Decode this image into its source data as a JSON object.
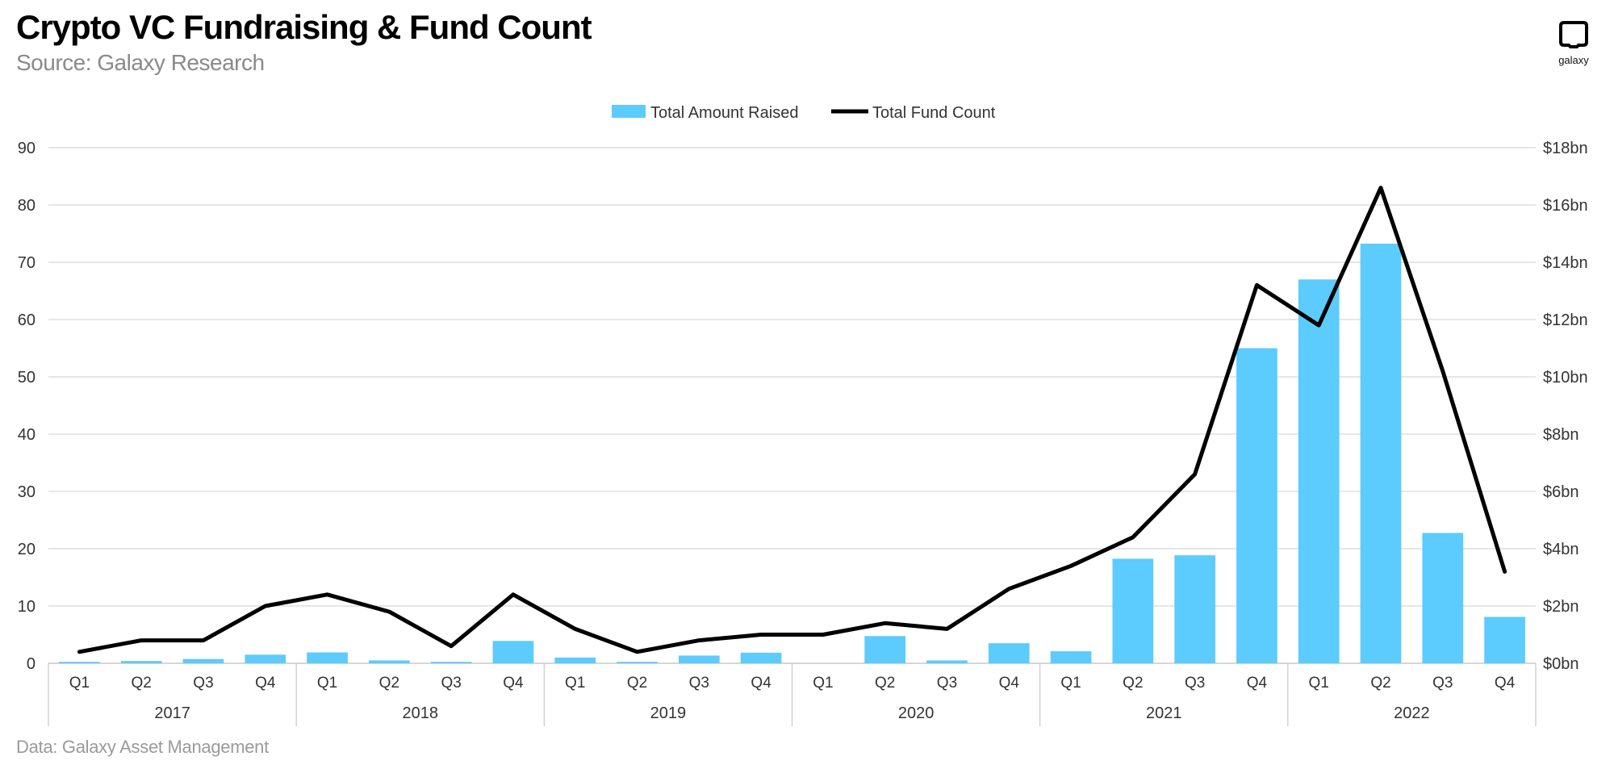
{
  "header": {
    "title": "Crypto VC Fundraising & Fund Count",
    "subtitle": "Source: Galaxy Research"
  },
  "logo": {
    "text": "galaxy",
    "icon": "galaxy-logo-icon"
  },
  "footer": {
    "note": "Data: Galaxy Asset Management"
  },
  "colors": {
    "bar": "#5ccbfd",
    "line": "#000000",
    "grid": "#d6d6d6",
    "axis_text": "#333333"
  },
  "chart_data": {
    "type": "bar",
    "categories": [
      "Q1",
      "Q2",
      "Q3",
      "Q4",
      "Q1",
      "Q2",
      "Q3",
      "Q4",
      "Q1",
      "Q2",
      "Q3",
      "Q4",
      "Q1",
      "Q2",
      "Q3",
      "Q4",
      "Q1",
      "Q2",
      "Q3",
      "Q4",
      "Q1",
      "Q2",
      "Q3",
      "Q4"
    ],
    "groups": [
      {
        "label": "2017",
        "count": 4
      },
      {
        "label": "2018",
        "count": 4
      },
      {
        "label": "2019",
        "count": 4
      },
      {
        "label": "2020",
        "count": 4
      },
      {
        "label": "2021",
        "count": 4
      },
      {
        "label": "2022",
        "count": 4
      }
    ],
    "series": [
      {
        "name": "Total Amount Raised",
        "type": "bar",
        "axis": "right",
        "values": [
          0.05,
          0.08,
          0.15,
          0.3,
          0.38,
          0.1,
          0.05,
          0.78,
          0.2,
          0.05,
          0.27,
          0.37,
          0.0,
          0.95,
          0.1,
          0.7,
          0.42,
          3.65,
          3.77,
          11.0,
          13.4,
          14.65,
          4.55,
          1.62
        ]
      },
      {
        "name": "Total Fund Count",
        "type": "line",
        "axis": "left",
        "values": [
          2,
          4,
          4,
          10,
          12,
          9,
          3,
          12,
          6,
          2,
          4,
          5,
          5,
          7,
          6,
          13,
          17,
          22,
          33,
          66,
          59,
          83,
          51,
          16
        ]
      }
    ],
    "y_left": {
      "min": 0,
      "max": 90,
      "ticks": [
        "0",
        "10",
        "20",
        "30",
        "40",
        "50",
        "60",
        "70",
        "80",
        "90"
      ]
    },
    "y_right": {
      "min": 0,
      "max": 18,
      "ticks": [
        "$0bn",
        "$2bn",
        "$4bn",
        "$6bn",
        "$8bn",
        "$10bn",
        "$12bn",
        "$14bn",
        "$16bn",
        "$18bn"
      ]
    },
    "grid": true,
    "legend": "top-center"
  }
}
